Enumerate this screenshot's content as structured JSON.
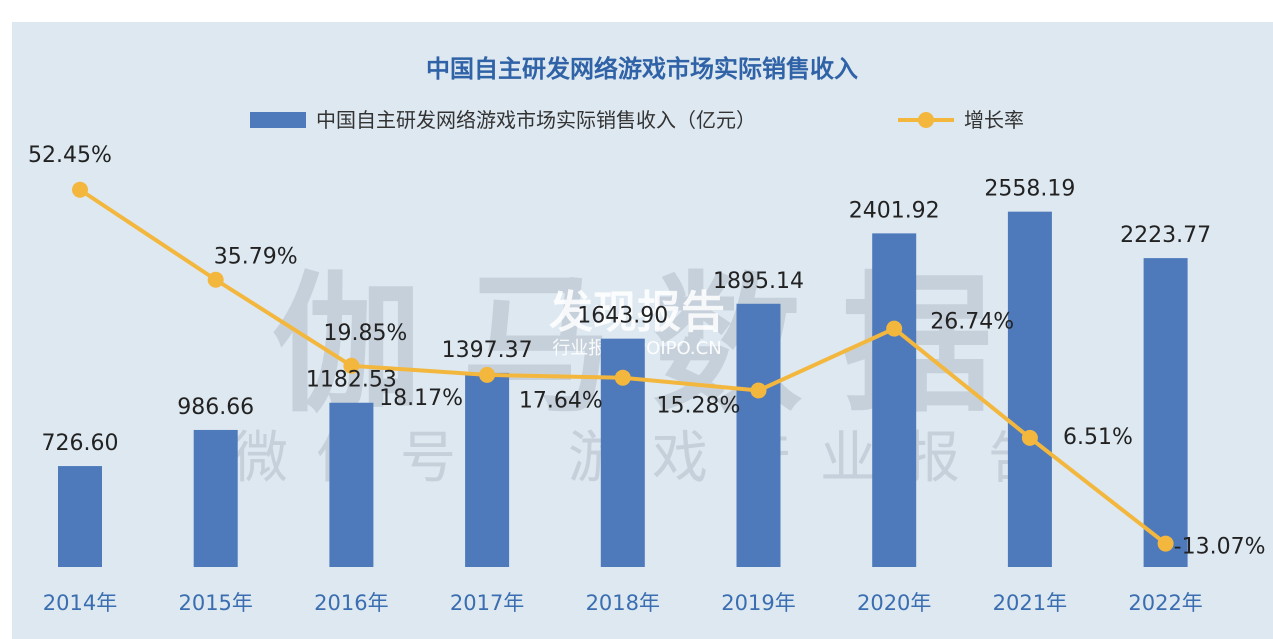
{
  "chart_data": {
    "type": "bar",
    "title": "中国自主研发网络游戏市场实际销售收入",
    "categories": [
      "2014年",
      "2015年",
      "2016年",
      "2017年",
      "2018年",
      "2019年",
      "2020年",
      "2021年",
      "2022年"
    ],
    "series": [
      {
        "name": "中国自主研发网络游戏市场实际销售收入（亿元）",
        "type": "bar",
        "values": [
          726.6,
          986.66,
          1182.53,
          1397.37,
          1643.9,
          1895.14,
          2401.92,
          2558.19,
          2223.77
        ],
        "labels": [
          "726.60",
          "986.66",
          "1182.53",
          "1397.37",
          "1643.90",
          "1895.14",
          "2401.92",
          "2558.19",
          "2223.77"
        ]
      },
      {
        "name": "增长率",
        "type": "line",
        "values": [
          52.45,
          35.79,
          19.85,
          18.17,
          17.64,
          15.28,
          26.74,
          6.51,
          -13.07
        ],
        "labels": [
          "52.45%",
          "35.79%",
          "19.85%",
          "18.17%",
          "17.64%",
          "15.28%",
          "26.74%",
          "6.51%",
          "-13.07%"
        ]
      }
    ],
    "legend_position": "top-center",
    "grid": false,
    "colors": {
      "bar": "#4e79bb",
      "line": "#f3b73e",
      "title": "#2f62a6",
      "tick": "#3a6eb0",
      "label": "#222222",
      "background": "#dde8f1"
    }
  },
  "watermarks": {
    "main": "伽马数据",
    "wechat": "微信号：游戏产业报告",
    "logo": "发现报告",
    "logo_sub": "行业报告 IPOIPO.CN"
  }
}
